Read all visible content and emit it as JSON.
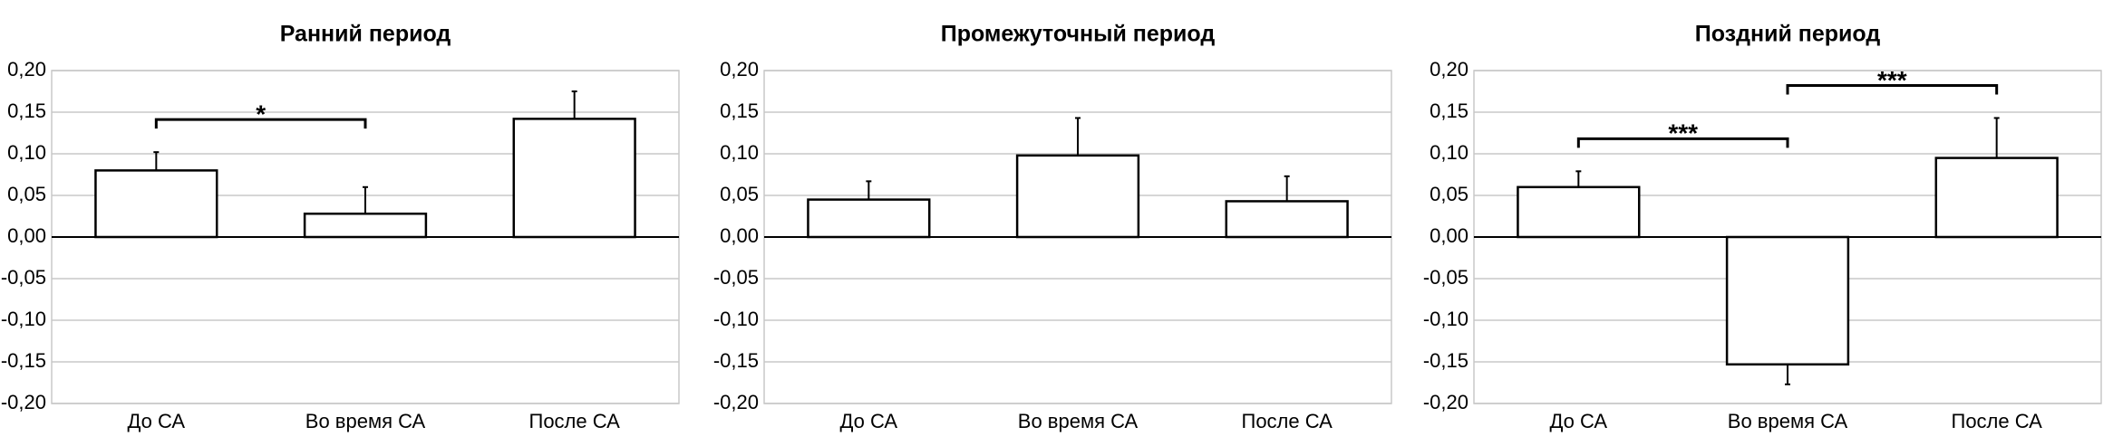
{
  "chart_data": [
    {
      "type": "bar",
      "title": "Ранний период",
      "categories": [
        "До СА",
        "Во время СА",
        "После СА"
      ],
      "values": [
        0.08,
        0.028,
        0.142
      ],
      "errors": [
        0.022,
        0.032,
        0.033
      ],
      "ylim": [
        -0.2,
        0.2
      ],
      "yticks": [
        {
          "value": -0.2,
          "label": "-0,20"
        },
        {
          "value": -0.15,
          "label": "-0,15"
        },
        {
          "value": -0.1,
          "label": "-0,10"
        },
        {
          "value": -0.05,
          "label": "-0,05"
        },
        {
          "value": 0,
          "label": "0,00"
        },
        {
          "value": 0.05,
          "label": "0,05"
        },
        {
          "value": 0.1,
          "label": "0,10"
        },
        {
          "value": 0.15,
          "label": "0,15"
        },
        {
          "value": 0.2,
          "label": "0,20"
        }
      ],
      "grid": true,
      "annotations": [
        {
          "text": "*",
          "between": [
            0,
            1
          ]
        }
      ]
    },
    {
      "type": "bar",
      "title": "Промежуточный период",
      "categories": [
        "До СА",
        "Во время СА",
        "После СА"
      ],
      "values": [
        0.045,
        0.098,
        0.043
      ],
      "errors": [
        0.022,
        0.045,
        0.03
      ],
      "ylim": [
        -0.2,
        0.2
      ],
      "yticks": [
        {
          "value": -0.2,
          "label": "-0,20"
        },
        {
          "value": -0.15,
          "label": "-0,15"
        },
        {
          "value": -0.1,
          "label": "-0,10"
        },
        {
          "value": -0.05,
          "label": "-0,05"
        },
        {
          "value": 0,
          "label": "0,00"
        },
        {
          "value": 0.05,
          "label": "0,05"
        },
        {
          "value": 0.1,
          "label": "0,10"
        },
        {
          "value": 0.15,
          "label": "0,15"
        },
        {
          "value": 0.2,
          "label": "0,20"
        }
      ],
      "grid": true,
      "annotations": []
    },
    {
      "type": "bar",
      "title": "Поздний период",
      "categories": [
        "До СА",
        "Во время СА",
        "После СА"
      ],
      "values": [
        0.06,
        -0.153,
        0.095
      ],
      "errors": [
        0.019,
        0.024,
        0.048
      ],
      "ylim": [
        -0.2,
        0.2
      ],
      "yticks": [
        {
          "value": -0.2,
          "label": "-0,20"
        },
        {
          "value": -0.15,
          "label": "-0,15"
        },
        {
          "value": -0.1,
          "label": "-0,10"
        },
        {
          "value": -0.05,
          "label": "-0,05"
        },
        {
          "value": 0,
          "label": "0,00"
        },
        {
          "value": 0.05,
          "label": "0,05"
        },
        {
          "value": 0.1,
          "label": "0,10"
        },
        {
          "value": 0.15,
          "label": "0,15"
        },
        {
          "value": 0.2,
          "label": "0,20"
        }
      ],
      "grid": true,
      "annotations": [
        {
          "text": "***",
          "between": [
            0,
            1
          ]
        },
        {
          "text": "***",
          "between": [
            1,
            2
          ]
        }
      ]
    }
  ]
}
